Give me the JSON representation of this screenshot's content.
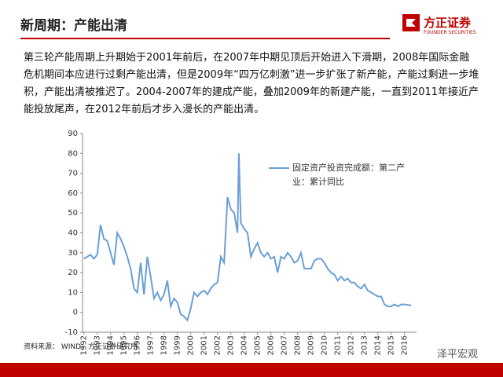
{
  "slide": {
    "title": "新周期：产能出清",
    "brand": "方正证券",
    "brand_en": "FOUNDER SECURITIES",
    "body": "第三轮产能周期上升期始于2001年前后，在2007年中期见顶后开始进入下滑期，2008年国际金融危机期间本应进行过剩产能出清，但是2009年“四万亿刺激”进一步扩张了新产能，产能过剩进一步堆积，产能出清被推迟了。2004-2007年的建成产能，叠加2009年的新建产能，一直到2011年接近产能投放尾声，在2012年前后才步入漫长的产能出清。",
    "source": "资料来源：  WIND，方正证券研究所",
    "watermark": "泽平宏观"
  },
  "chart_data": {
    "type": "line",
    "x": [
      1992,
      1992.25,
      1992.5,
      1992.75,
      1993,
      1993.25,
      1993.5,
      1993.75,
      1994,
      1994.25,
      1994.5,
      1994.75,
      1995,
      1995.25,
      1995.5,
      1995.75,
      1996,
      1996.25,
      1996.5,
      1996.75,
      1997,
      1997.25,
      1997.5,
      1997.75,
      1998,
      1998.25,
      1998.5,
      1998.75,
      1999,
      1999.25,
      1999.5,
      1999.75,
      2000,
      2000.25,
      2000.5,
      2000.75,
      2001,
      2001.25,
      2001.5,
      2001.75,
      2002,
      2002.25,
      2002.5,
      2002.75,
      2003,
      2003.25,
      2003.5,
      2003.6,
      2003.75,
      2004,
      2004.25,
      2004.5,
      2004.75,
      2005,
      2005.25,
      2005.5,
      2005.75,
      2006,
      2006.25,
      2006.5,
      2006.75,
      2007,
      2007.25,
      2007.5,
      2007.75,
      2008,
      2008.25,
      2008.5,
      2008.75,
      2009,
      2009.25,
      2009.5,
      2009.75,
      2010,
      2010.25,
      2010.5,
      2010.75,
      2011,
      2011.25,
      2011.5,
      2011.75,
      2012,
      2012.25,
      2012.5,
      2012.75,
      2013,
      2013.25,
      2013.5,
      2013.75,
      2014,
      2014.25,
      2014.5,
      2014.75,
      2015,
      2015.25,
      2015.5,
      2015.75,
      2016,
      2016.5
    ],
    "series": [
      {
        "name": "固定资产投资完成额：第二产业：累计同比",
        "color": "#6a9fd6",
        "values": [
          27,
          28,
          29,
          27,
          29,
          44,
          37,
          36,
          30,
          24,
          40,
          37,
          33,
          28,
          22,
          12,
          10,
          25,
          9,
          28,
          18,
          7,
          10,
          6,
          9,
          16,
          3,
          7,
          5,
          -1,
          -2,
          -4,
          2,
          10,
          8,
          10,
          11,
          9,
          12,
          14,
          15,
          28,
          25,
          58,
          52,
          50,
          40,
          80,
          45,
          42,
          40,
          28,
          32,
          35,
          30,
          28,
          30,
          27,
          28,
          20,
          28,
          27,
          30,
          28,
          25,
          26,
          30,
          22,
          22,
          22,
          26,
          27,
          27,
          25,
          22,
          20,
          19,
          16,
          18,
          16,
          17,
          15,
          15,
          13,
          12,
          14,
          11,
          10,
          9,
          8,
          8,
          4,
          3,
          3,
          4,
          3,
          4,
          4,
          3.5
        ]
      }
    ],
    "xlim": [
      1991.9,
      2016.9
    ],
    "xticks": [
      1992,
      1993,
      1994,
      1995,
      1996,
      1997,
      1998,
      1999,
      2000,
      2001,
      2002,
      2003,
      2004,
      2005,
      2006,
      2007,
      2008,
      2009,
      2010,
      2011,
      2012,
      2013,
      2014,
      2015,
      2016
    ],
    "ylim": [
      -10,
      90
    ],
    "yticks": [
      -10,
      0,
      10,
      20,
      30,
      40,
      50,
      60,
      70,
      80,
      90
    ]
  }
}
